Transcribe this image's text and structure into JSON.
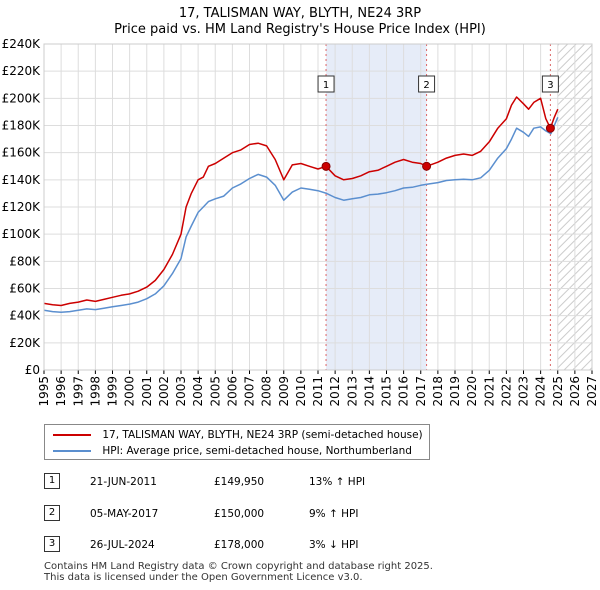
{
  "title_line1": "17, TALISMAN WAY, BLYTH, NE24 3RP",
  "title_line2": "Price paid vs. HM Land Registry's House Price Index (HPI)",
  "legend": {
    "property_label": "17, TALISMAN WAY, BLYTH, NE24 3RP (semi-detached house)",
    "hpi_label": "HPI: Average price, semi-detached house, Northumberland"
  },
  "events": [
    {
      "num": "1",
      "date": "21-JUN-2011",
      "price": "£149,950",
      "hpi": "13% ↑ HPI"
    },
    {
      "num": "2",
      "date": "05-MAY-2017",
      "price": "£150,000",
      "hpi": "9% ↑ HPI"
    },
    {
      "num": "3",
      "date": "26-JUL-2024",
      "price": "£178,000",
      "hpi": "3% ↓ HPI"
    }
  ],
  "footer": {
    "line1": "Contains HM Land Registry data © Crown copyright and database right 2025.",
    "line2": "This data is licensed under the Open Government Licence v3.0."
  },
  "colors": {
    "property": "#cc0000",
    "hpi": "#5b8fcf",
    "shade": "#e6ecf8",
    "grid": "#dddddd",
    "vline": "#dd6666",
    "future_hatch": "#cccccc"
  },
  "chart_data": {
    "type": "line",
    "xlabel": "",
    "ylabel": "",
    "xlim": [
      1995,
      2027
    ],
    "ylim": [
      0,
      240000
    ],
    "grid": true,
    "x_ticks": [
      "1995",
      "1996",
      "1997",
      "1998",
      "1999",
      "2000",
      "2001",
      "2002",
      "2003",
      "2004",
      "2005",
      "2006",
      "2007",
      "2008",
      "2009",
      "2010",
      "2011",
      "2012",
      "2013",
      "2014",
      "2015",
      "2016",
      "2017",
      "2018",
      "2019",
      "2020",
      "2021",
      "2022",
      "2023",
      "2024",
      "2025",
      "2026",
      "2027"
    ],
    "y_ticks": [
      {
        "value": 0,
        "label": "£0"
      },
      {
        "value": 20000,
        "label": "£20K"
      },
      {
        "value": 40000,
        "label": "£40K"
      },
      {
        "value": 60000,
        "label": "£60K"
      },
      {
        "value": 80000,
        "label": "£80K"
      },
      {
        "value": 100000,
        "label": "£100K"
      },
      {
        "value": 120000,
        "label": "£120K"
      },
      {
        "value": 140000,
        "label": "£140K"
      },
      {
        "value": 160000,
        "label": "£160K"
      },
      {
        "value": 180000,
        "label": "£180K"
      },
      {
        "value": 200000,
        "label": "£200K"
      },
      {
        "value": 220000,
        "label": "£220K"
      },
      {
        "value": 240000,
        "label": "£240K"
      }
    ],
    "shaded_region": [
      2011.47,
      2017.34
    ],
    "future_from": 2025.0,
    "series": [
      {
        "name": "17, TALISMAN WAY, BLYTH, NE24 3RP (semi-detached house)",
        "x": [
          1995,
          1995.5,
          1996,
          1996.5,
          1997,
          1997.5,
          1998,
          1998.5,
          1999,
          1999.5,
          2000,
          2000.5,
          2001,
          2001.5,
          2002,
          2002.5,
          2003,
          2003.3,
          2003.6,
          2004,
          2004.3,
          2004.6,
          2005,
          2005.5,
          2006,
          2006.5,
          2007,
          2007.5,
          2008,
          2008.5,
          2009,
          2009.5,
          2010,
          2010.5,
          2011,
          2011.47,
          2012,
          2012.5,
          2013,
          2013.5,
          2014,
          2014.5,
          2015,
          2015.5,
          2016,
          2016.5,
          2017,
          2017.34,
          2018,
          2018.5,
          2019,
          2019.5,
          2020,
          2020.5,
          2021,
          2021.5,
          2022,
          2022.3,
          2022.6,
          2023,
          2023.3,
          2023.6,
          2024,
          2024.3,
          2024.57,
          2024.8,
          2025.0
        ],
        "values": [
          49000,
          48000,
          47500,
          49000,
          50000,
          51500,
          50500,
          52000,
          53500,
          55000,
          56000,
          58000,
          61000,
          66000,
          74000,
          85000,
          100000,
          120000,
          130000,
          140000,
          142000,
          150000,
          152000,
          156000,
          160000,
          162000,
          166000,
          167000,
          165000,
          155000,
          140000,
          151000,
          152000,
          150000,
          148000,
          149950,
          143000,
          140000,
          141000,
          143000,
          146000,
          147000,
          150000,
          153000,
          155000,
          153000,
          152000,
          150000,
          153000,
          156000,
          158000,
          159000,
          158000,
          161000,
          168000,
          178000,
          185000,
          195000,
          201000,
          196000,
          192000,
          197000,
          200000,
          185000,
          178000,
          186000,
          192000
        ]
      },
      {
        "name": "HPI: Average price, semi-detached house, Northumberland",
        "x": [
          1995,
          1995.5,
          1996,
          1996.5,
          1997,
          1997.5,
          1998,
          1998.5,
          1999,
          1999.5,
          2000,
          2000.5,
          2001,
          2001.5,
          2002,
          2002.5,
          2003,
          2003.3,
          2003.6,
          2004,
          2004.3,
          2004.6,
          2005,
          2005.5,
          2006,
          2006.5,
          2007,
          2007.5,
          2008,
          2008.5,
          2009,
          2009.5,
          2010,
          2010.5,
          2011,
          2011.5,
          2012,
          2012.5,
          2013,
          2013.5,
          2014,
          2014.5,
          2015,
          2015.5,
          2016,
          2016.5,
          2017,
          2017.5,
          2018,
          2018.5,
          2019,
          2019.5,
          2020,
          2020.5,
          2021,
          2021.5,
          2022,
          2022.3,
          2022.6,
          2023,
          2023.3,
          2023.6,
          2024,
          2024.3,
          2024.6,
          2024.8,
          2025.0
        ],
        "values": [
          44000,
          43000,
          42500,
          43000,
          44000,
          45000,
          44500,
          45500,
          46500,
          47500,
          48500,
          50000,
          52500,
          56000,
          62000,
          71000,
          82000,
          98000,
          106000,
          116000,
          120000,
          124000,
          126000,
          128000,
          134000,
          137000,
          141000,
          144000,
          142000,
          136000,
          125000,
          131000,
          134000,
          133000,
          132000,
          130000,
          127000,
          125000,
          126000,
          127000,
          129000,
          129500,
          130500,
          132000,
          134000,
          134500,
          136000,
          137000,
          138000,
          139500,
          140000,
          140500,
          140000,
          141500,
          147000,
          156000,
          163000,
          170000,
          178000,
          175000,
          172000,
          178000,
          179000,
          176000,
          174000,
          180000,
          186000
        ]
      }
    ],
    "sales": [
      {
        "label": "1",
        "x": 2011.47,
        "value": 149950
      },
      {
        "label": "2",
        "x": 2017.34,
        "value": 150000
      },
      {
        "label": "3",
        "x": 2024.57,
        "value": 178000
      }
    ]
  }
}
